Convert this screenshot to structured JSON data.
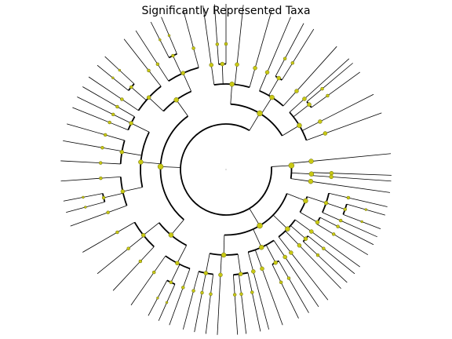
{
  "chart_data": {
    "type": "cladogram",
    "layout": "circular",
    "title": "Significantly Represented Taxa",
    "colors": {
      "node_fill": "#c8c814",
      "node_stroke": "#6a6a10",
      "branch": "#000000",
      "background": "#ffffff"
    },
    "max_depth": 7,
    "node_size_range": [
      1,
      4
    ],
    "tree": {
      "children": [
        {
          "start": -15,
          "end": 8,
          "children": [
            {
              "end": -5.5
            },
            {
              "end": 3,
              "children": [
                {
                  "end": 2
                },
                {
                  "end": 4
                }
              ]
            },
            {
              "end": 8
            }
          ]
        },
        {
          "start": 13,
          "end": 105,
          "children": [
            {
              "start": 13,
              "end": 30,
              "children": [
                {
                  "start": 13,
                  "end": 24,
                  "children": [
                    {
                      "end": 13
                    },
                    {
                      "end": 18.5,
                      "children": [
                        {
                          "end": 16
                        },
                        {
                          "end": 21
                        }
                      ]
                    },
                    {
                      "end": 24
                    }
                  ]
                },
                {
                  "end": 30,
                  "children": [
                    {
                      "end": 27
                    },
                    {
                      "end": 31
                    }
                  ]
                }
              ]
            },
            {
              "start": 36,
              "end": 52,
              "children": [
                {
                  "end": 36
                },
                {
                  "end": 41,
                  "children": [
                    {
                      "end": 39
                    },
                    {
                      "end": 43
                    }
                  ]
                },
                {
                  "end": 46
                },
                {
                  "end": 52
                }
              ]
            },
            {
              "start": 56,
              "end": 75,
              "children": [
                {
                  "end": 56
                },
                {
                  "end": 62,
                  "children": [
                    {
                      "end": 60
                    },
                    {
                      "end": 64
                    }
                  ]
                },
                {
                  "end": 70
                },
                {
                  "end": 75
                }
              ]
            },
            {
              "start": 78,
              "end": 105,
              "children": [
                {
                  "start": 78,
                  "end": 86,
                  "children": [
                    {
                      "end": 78
                    },
                    {
                      "end": 83
                    },
                    {
                      "end": 86
                    }
                  ]
                },
                {
                  "end": 93
                },
                {
                  "start": 97,
                  "end": 105,
                  "children": [
                    {
                      "end": 97
                    },
                    {
                      "end": 101
                    },
                    {
                      "end": 105
                    }
                  ]
                }
              ]
            }
          ]
        },
        {
          "start": 110,
          "end": 255,
          "children": [
            {
              "start": 110,
              "end": 150,
              "children": [
                {
                  "start": 110,
                  "end": 125,
                  "children": [
                    {
                      "end": 110
                    },
                    {
                      "end": 116,
                      "children": [
                        {
                          "end": 114
                        },
                        {
                          "end": 118
                        }
                      ]
                    },
                    {
                      "end": 125
                    }
                  ]
                },
                {
                  "start": 133,
                  "end": 150,
                  "children": [
                    {
                      "end": 133
                    },
                    {
                      "end": 141
                    },
                    {
                      "end": 150
                    }
                  ]
                }
              ]
            },
            {
              "start": 160,
              "end": 210,
              "children": [
                {
                  "start": 160,
                  "end": 176,
                  "children": [
                    {
                      "end": 160
                    },
                    {
                      "end": 167,
                      "children": [
                        {
                          "end": 165
                        },
                        {
                          "end": 169
                        }
                      ]
                    },
                    {
                      "end": 176
                    }
                  ]
                },
                {
                  "start": 183,
                  "end": 196,
                  "children": [
                    {
                      "end": 183
                    },
                    {
                      "end": 190
                    },
                    {
                      "end": 196
                    }
                  ]
                },
                {
                  "start": 202,
                  "end": 210,
                  "children": [
                    {
                      "end": 202
                    },
                    {
                      "end": 206
                    },
                    {
                      "end": 210
                    }
                  ]
                }
              ]
            },
            {
              "start": 214,
              "end": 255,
              "children": [
                {
                  "start": 214,
                  "end": 232,
                  "children": [
                    {
                      "end": 214
                    },
                    {
                      "end": 221,
                      "children": [
                        {
                          "end": 219
                        },
                        {
                          "end": 223
                        }
                      ]
                    },
                    {
                      "end": 232
                    }
                  ]
                },
                {
                  "start": 237,
                  "end": 255,
                  "children": [
                    {
                      "end": 237
                    },
                    {
                      "end": 245,
                      "children": [
                        {
                          "end": 243
                        },
                        {
                          "end": 247
                        }
                      ]
                    },
                    {
                      "end": 255
                    }
                  ]
                }
              ]
            }
          ]
        },
        {
          "start": 262,
          "end": 340,
          "children": [
            {
              "start": 262,
              "end": 286,
              "children": [
                {
                  "end": 262
                },
                {
                  "end": 268,
                  "children": [
                    {
                      "end": 266
                    },
                    {
                      "end": 270
                    }
                  ]
                },
                {
                  "end": 276
                },
                {
                  "end": 286
                }
              ]
            },
            {
              "start": 293,
              "end": 312,
              "children": [
                {
                  "end": 293
                },
                {
                  "end": 300,
                  "children": [
                    {
                      "end": 298
                    },
                    {
                      "end": 302
                    }
                  ]
                },
                {
                  "end": 312
                }
              ]
            },
            {
              "start": 318,
              "end": 340,
              "children": [
                {
                  "end": 318
                },
                {
                  "end": 322,
                  "children": [
                    {
                      "end": 320
                    },
                    {
                      "end": 324
                    }
                  ]
                },
                {
                  "end": 333
                },
                {
                  "end": 340
                }
              ]
            }
          ]
        }
      ]
    }
  }
}
